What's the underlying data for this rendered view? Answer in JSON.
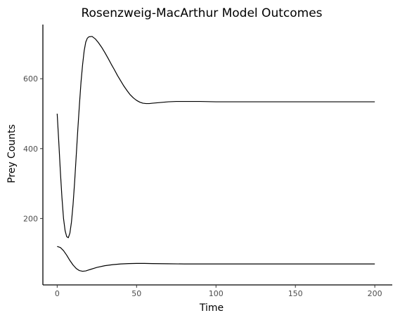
{
  "chart_data": {
    "type": "line",
    "title": "Rosenzweig-MacArthur Model Outcomes",
    "xlabel": "Time",
    "ylabel": "Prey Counts",
    "xlim": [
      -9,
      211
    ],
    "ylim": [
      10,
      755
    ],
    "x_ticks": [
      0,
      50,
      100,
      150,
      200
    ],
    "y_ticks": [
      200,
      400,
      600
    ],
    "grid": false,
    "series": [
      {
        "line_color": "#000000",
        "points": [
          [
            0,
            500
          ],
          [
            1,
            420
          ],
          [
            2,
            335
          ],
          [
            3,
            260
          ],
          [
            4,
            200
          ],
          [
            5,
            165
          ],
          [
            6,
            148
          ],
          [
            7,
            145
          ],
          [
            8,
            158
          ],
          [
            9,
            190
          ],
          [
            10,
            240
          ],
          [
            11,
            305
          ],
          [
            12,
            380
          ],
          [
            13,
            455
          ],
          [
            14,
            525
          ],
          [
            15,
            590
          ],
          [
            16,
            640
          ],
          [
            17,
            680
          ],
          [
            18,
            705
          ],
          [
            19,
            716
          ],
          [
            20,
            720
          ],
          [
            22,
            721
          ],
          [
            24,
            714
          ],
          [
            26,
            703
          ],
          [
            28,
            690
          ],
          [
            30,
            675
          ],
          [
            32,
            659
          ],
          [
            34,
            642
          ],
          [
            36,
            626
          ],
          [
            38,
            609
          ],
          [
            40,
            594
          ],
          [
            42,
            579
          ],
          [
            44,
            566
          ],
          [
            46,
            554
          ],
          [
            48,
            545
          ],
          [
            50,
            538
          ],
          [
            52,
            533
          ],
          [
            54,
            530
          ],
          [
            56,
            529
          ],
          [
            58,
            529
          ],
          [
            60,
            530
          ],
          [
            65,
            532
          ],
          [
            70,
            534
          ],
          [
            75,
            535
          ],
          [
            80,
            535
          ],
          [
            90,
            535
          ],
          [
            100,
            534
          ],
          [
            120,
            534
          ],
          [
            150,
            534
          ],
          [
            175,
            534
          ],
          [
            200,
            534
          ]
        ]
      },
      {
        "line_color": "#000000",
        "points": [
          [
            0,
            120
          ],
          [
            2,
            117
          ],
          [
            4,
            108
          ],
          [
            6,
            95
          ],
          [
            8,
            80
          ],
          [
            10,
            67
          ],
          [
            12,
            57
          ],
          [
            14,
            51
          ],
          [
            16,
            49
          ],
          [
            18,
            50
          ],
          [
            20,
            53
          ],
          [
            25,
            60
          ],
          [
            30,
            65
          ],
          [
            35,
            68
          ],
          [
            40,
            70
          ],
          [
            45,
            71
          ],
          [
            50,
            71.5
          ],
          [
            55,
            71.5
          ],
          [
            60,
            71
          ],
          [
            70,
            70.5
          ],
          [
            80,
            70
          ],
          [
            100,
            70
          ],
          [
            150,
            70
          ],
          [
            200,
            70
          ]
        ]
      }
    ]
  }
}
